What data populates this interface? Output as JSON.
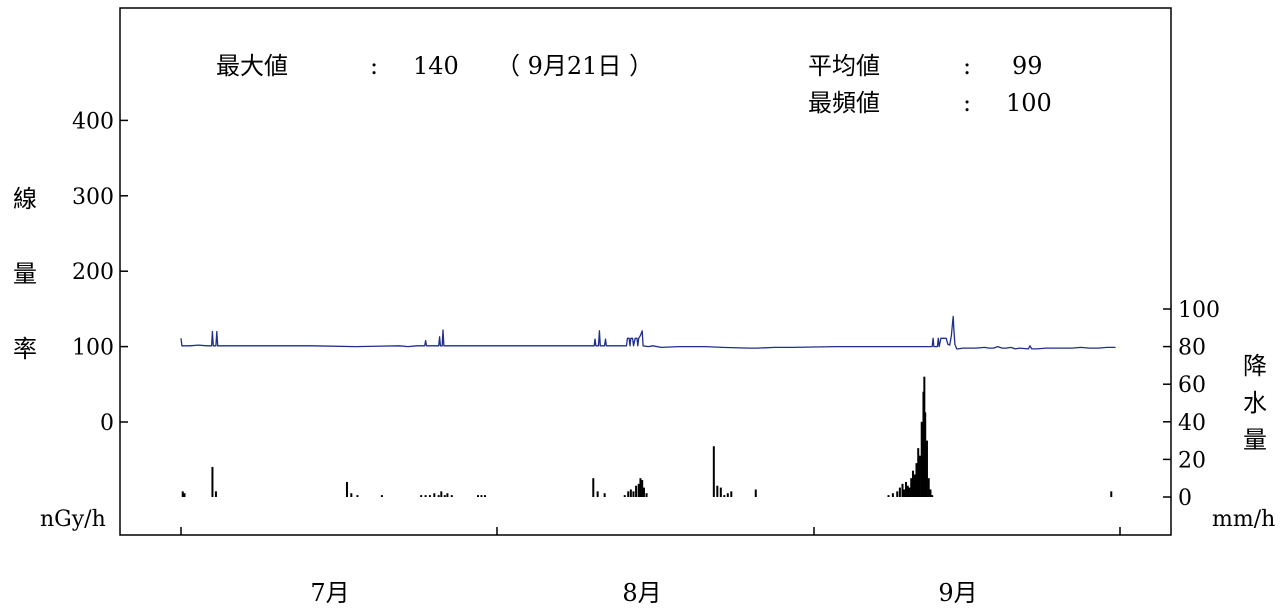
{
  "stats": {
    "max_label": "最大値",
    "max_colon": ":",
    "max_value": "140",
    "max_date": "（ 9月21日 ）",
    "mean_label": "平均値",
    "mean_colon": ":",
    "mean_value": "99",
    "mode_label": "最頻値",
    "mode_colon": ":",
    "mode_value": "100"
  },
  "colors": {
    "dose_line": "#1f2e8c",
    "rain_bars": "#000000",
    "frame": "#000000"
  },
  "chart_data": {
    "type": "line+bar",
    "x_months": [
      "7月",
      "8月",
      "9月"
    ],
    "x_range_days": [
      "7/1",
      "9/30"
    ],
    "left_axis": {
      "label_chars": [
        "線",
        "量",
        "率"
      ],
      "unit": "nGy/h",
      "ticks": [
        "400",
        "300",
        "200",
        "100",
        "0"
      ],
      "tick_values": [
        400,
        300,
        200,
        100,
        0
      ],
      "ylim": [
        -150,
        550
      ]
    },
    "right_axis": {
      "label_chars": [
        "降",
        "水",
        "量"
      ],
      "unit": "mm/h",
      "ticks": [
        "100",
        "80",
        "60",
        "40",
        "20",
        "0"
      ],
      "tick_values": [
        100,
        80,
        60,
        40,
        20,
        0
      ],
      "ylim": [
        0,
        100
      ]
    },
    "series": [
      {
        "kind": "line",
        "axis": "left",
        "points": [
          [
            0,
            111
          ],
          [
            0.1,
            101
          ],
          [
            1,
            101
          ],
          [
            2,
            102
          ],
          [
            3,
            101
          ],
          [
            3.5,
            101
          ],
          [
            3.6,
            120
          ],
          [
            3.7,
            101
          ],
          [
            4.0,
            101
          ],
          [
            4.1,
            120
          ],
          [
            4.2,
            101
          ],
          [
            6,
            101
          ],
          [
            10,
            101
          ],
          [
            15,
            101
          ],
          [
            20,
            100
          ],
          [
            25,
            101
          ],
          [
            26,
            100
          ],
          [
            27,
            101
          ],
          [
            27.9,
            101
          ],
          [
            28.0,
            108
          ],
          [
            28.1,
            101
          ],
          [
            29.5,
            101
          ],
          [
            29.6,
            113
          ],
          [
            29.7,
            101
          ],
          [
            29.9,
            101
          ],
          [
            30.0,
            122
          ],
          [
            30.1,
            101
          ],
          [
            35,
            101
          ],
          [
            40,
            101
          ],
          [
            45,
            101
          ],
          [
            47.3,
            101
          ],
          [
            47.4,
            110
          ],
          [
            47.5,
            101
          ],
          [
            47.8,
            101
          ],
          [
            47.9,
            121
          ],
          [
            48.0,
            101
          ],
          [
            48.5,
            101
          ],
          [
            48.6,
            110
          ],
          [
            48.7,
            101
          ],
          [
            51.0,
            101
          ],
          [
            51.1,
            111
          ],
          [
            51.3,
            111
          ],
          [
            51.4,
            101
          ],
          [
            51.5,
            111
          ],
          [
            51.7,
            111
          ],
          [
            51.8,
            101
          ],
          [
            52.0,
            111
          ],
          [
            52.2,
            111
          ],
          [
            52.3,
            101
          ],
          [
            52.4,
            111
          ],
          [
            52.6,
            115
          ],
          [
            52.8,
            121
          ],
          [
            52.9,
            101
          ],
          [
            53.5,
            100
          ],
          [
            54,
            101
          ],
          [
            55,
            99
          ],
          [
            57,
            100
          ],
          [
            60,
            100
          ],
          [
            62,
            99
          ],
          [
            65,
            98
          ],
          [
            66,
            98
          ],
          [
            68,
            99
          ],
          [
            70,
            99
          ],
          [
            75,
            100
          ],
          [
            80,
            100
          ],
          [
            85,
            100
          ],
          [
            86.0,
            100
          ],
          [
            86.1,
            111
          ],
          [
            86.2,
            100
          ],
          [
            86.6,
            100
          ],
          [
            86.7,
            111
          ],
          [
            86.8,
            100
          ],
          [
            87.0,
            111
          ],
          [
            87.6,
            111
          ],
          [
            87.8,
            103
          ],
          [
            88.0,
            102
          ],
          [
            88.1,
            108
          ],
          [
            88.2,
            115
          ],
          [
            88.3,
            128
          ],
          [
            88.4,
            140
          ],
          [
            88.5,
            120
          ],
          [
            88.6,
            103
          ],
          [
            88.8,
            97
          ],
          [
            89,
            97
          ],
          [
            89.5,
            98
          ],
          [
            90,
            98
          ],
          [
            91,
            98
          ],
          [
            92,
            99
          ],
          [
            92.5,
            98
          ],
          [
            93,
            98
          ],
          [
            93.5,
            100
          ],
          [
            94,
            98
          ],
          [
            94.5,
            98
          ],
          [
            95,
            99
          ],
          [
            95.5,
            97
          ],
          [
            96,
            98
          ],
          [
            97,
            97
          ],
          [
            97.2,
            101
          ],
          [
            97.4,
            97
          ],
          [
            98,
            97
          ],
          [
            99,
            98
          ],
          [
            100,
            98
          ],
          [
            101,
            98
          ],
          [
            102,
            98
          ],
          [
            103,
            99
          ],
          [
            104,
            98
          ],
          [
            105,
            98
          ],
          [
            106,
            99
          ],
          [
            107,
            99
          ]
        ]
      },
      {
        "kind": "bar",
        "axis": "right",
        "bars": [
          [
            0.2,
            3
          ],
          [
            0.4,
            2
          ],
          [
            3.6,
            16
          ],
          [
            4.0,
            3
          ],
          [
            19.0,
            8
          ],
          [
            19.5,
            2
          ],
          [
            20.2,
            1
          ],
          [
            23.0,
            1
          ],
          [
            27.5,
            1
          ],
          [
            28.0,
            1
          ],
          [
            28.5,
            1
          ],
          [
            29.0,
            2
          ],
          [
            29.5,
            1
          ],
          [
            29.8,
            3
          ],
          [
            30.2,
            1
          ],
          [
            30.5,
            2
          ],
          [
            31.0,
            1
          ],
          [
            34.0,
            1
          ],
          [
            34.4,
            1
          ],
          [
            34.8,
            1
          ],
          [
            47.2,
            10
          ],
          [
            47.7,
            3
          ],
          [
            48.5,
            2
          ],
          [
            50.8,
            1
          ],
          [
            51.2,
            3
          ],
          [
            51.5,
            4
          ],
          [
            51.8,
            3
          ],
          [
            52.1,
            6
          ],
          [
            52.4,
            7
          ],
          [
            52.6,
            10
          ],
          [
            52.8,
            9
          ],
          [
            53.0,
            5
          ],
          [
            53.3,
            2
          ],
          [
            61.0,
            27
          ],
          [
            61.4,
            6
          ],
          [
            61.8,
            5
          ],
          [
            62.2,
            1
          ],
          [
            62.6,
            2
          ],
          [
            63.0,
            3
          ],
          [
            65.8,
            4
          ],
          [
            81.0,
            1
          ],
          [
            81.5,
            2
          ],
          [
            82.0,
            3
          ],
          [
            82.3,
            5
          ],
          [
            82.6,
            7
          ],
          [
            82.8,
            4
          ],
          [
            83.0,
            8
          ],
          [
            83.2,
            6
          ],
          [
            83.4,
            5
          ],
          [
            83.6,
            10
          ],
          [
            83.8,
            14
          ],
          [
            84.0,
            12
          ],
          [
            84.2,
            18
          ],
          [
            84.4,
            26
          ],
          [
            84.6,
            22
          ],
          [
            84.8,
            40
          ],
          [
            85.0,
            56
          ],
          [
            85.1,
            64
          ],
          [
            85.2,
            45
          ],
          [
            85.4,
            30
          ],
          [
            85.6,
            10
          ],
          [
            85.8,
            4
          ],
          [
            86.0,
            1
          ],
          [
            106.5,
            3
          ]
        ]
      }
    ]
  }
}
